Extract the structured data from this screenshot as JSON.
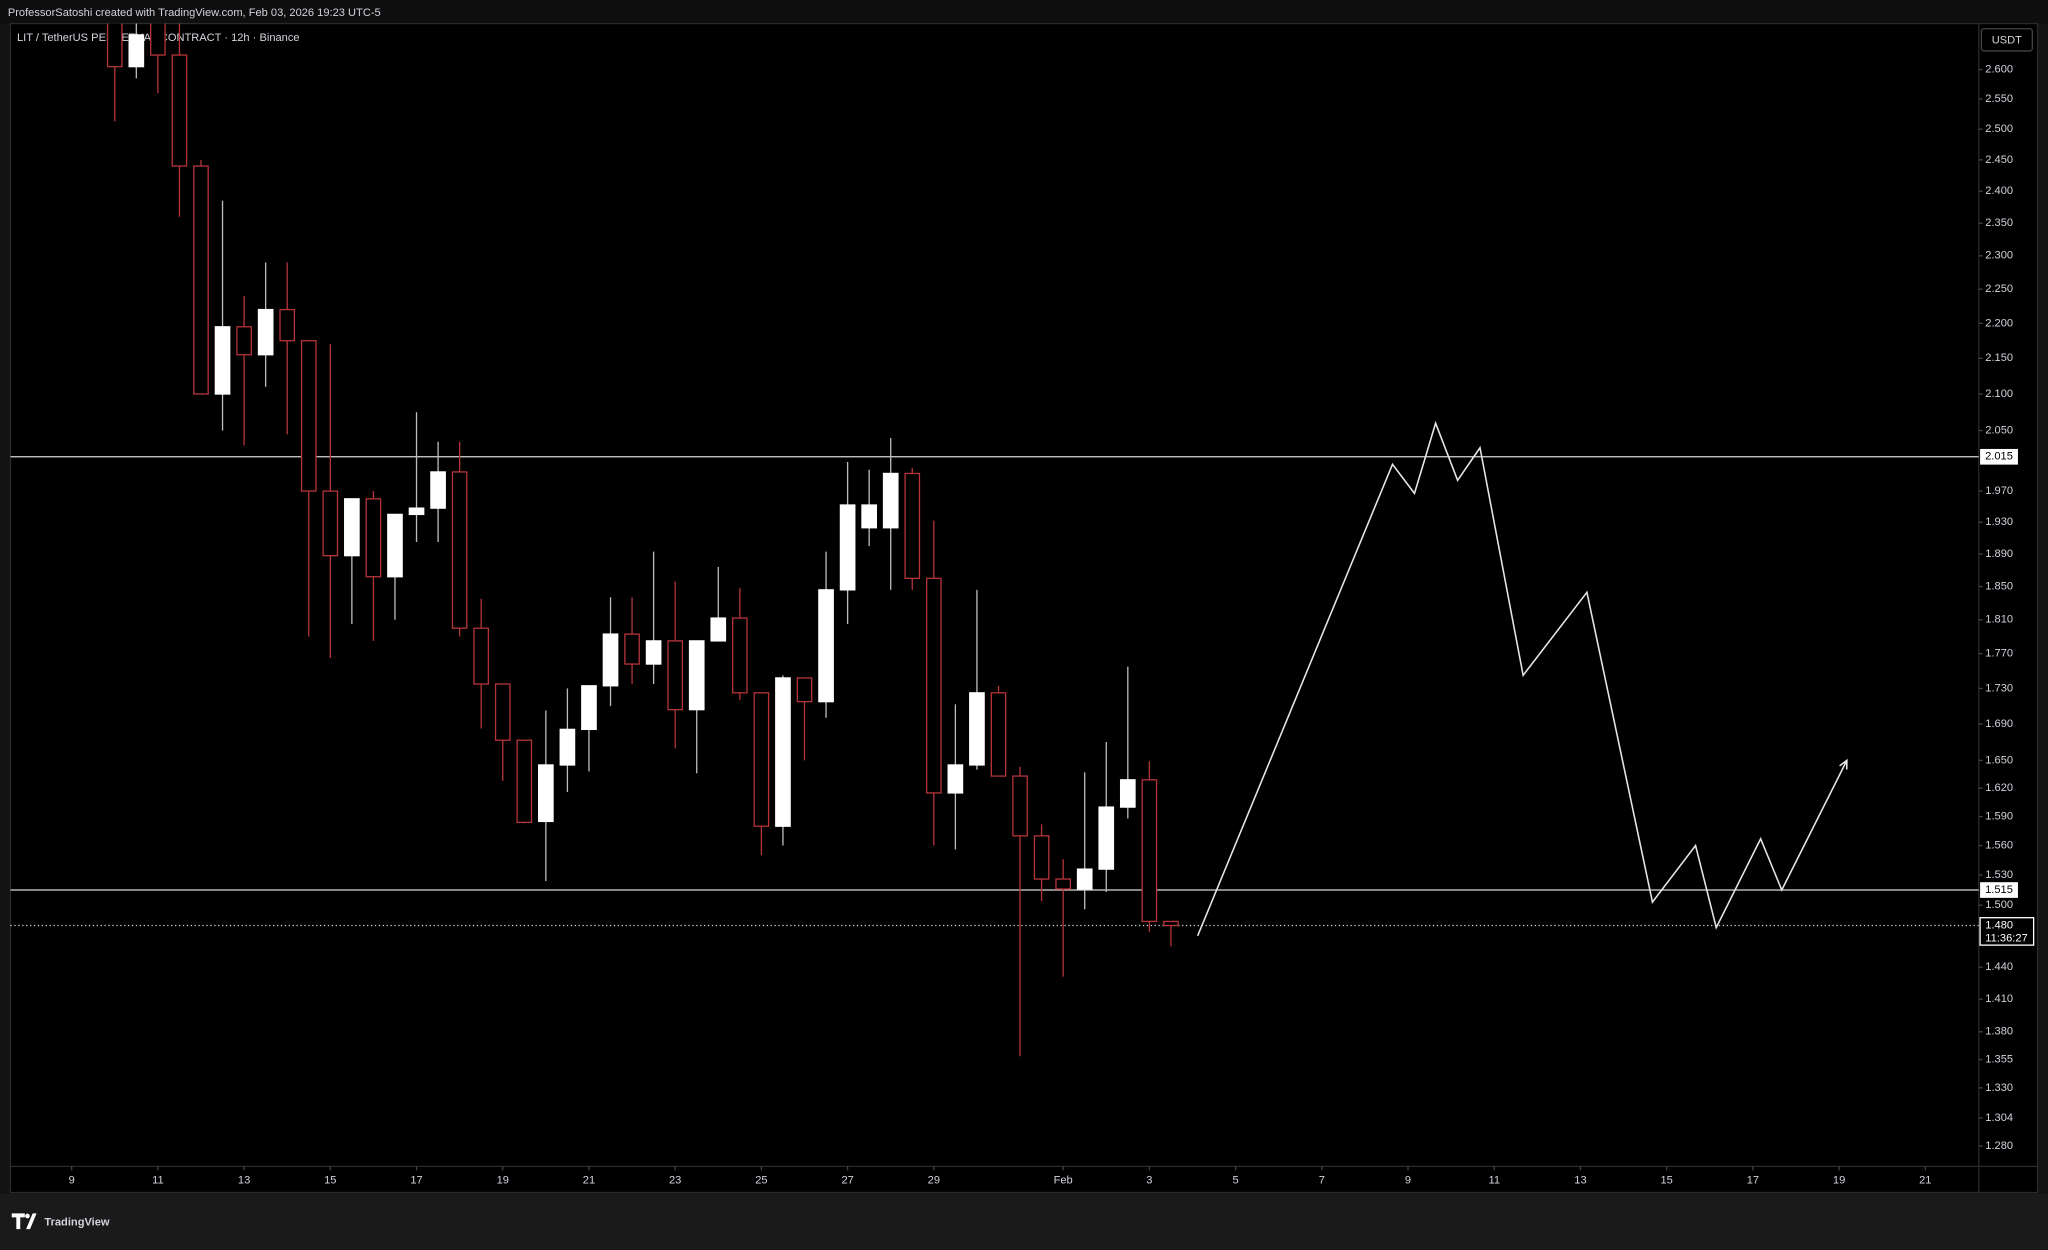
{
  "chart_data": {
    "type": "candlestick",
    "header": "ProfessorSatoshi created with TradingView.com, Feb 03, 2026 19:23 UTC-5",
    "title": "LIT / TetherUS PERPETUAL CONTRACT · 12h · Binance",
    "currency": "USDT",
    "brand": "TradingView",
    "log": true,
    "grid": false,
    "up_color": "#ffffff",
    "down_color": "#b5343a",
    "x": [
      10,
      10.5,
      11,
      11.5,
      12,
      12.5,
      13,
      13.5,
      14,
      14.5,
      15,
      15.5,
      16,
      16.5,
      17,
      17.5,
      18,
      18.5,
      19,
      19.5,
      20,
      20.5,
      21,
      21.5,
      22,
      22.5,
      23,
      23.5,
      24,
      24.5,
      25,
      25.5,
      26,
      26.5,
      27,
      27.5,
      28,
      28.5,
      29,
      29.5,
      30,
      30.5,
      31,
      31.5,
      32,
      32.5,
      33,
      33.5,
      34,
      34.5
    ],
    "open": [
      2.7,
      2.605,
      2.7,
      2.625,
      2.44,
      2.1,
      2.195,
      2.155,
      2.22,
      2.175,
      1.97,
      1.888,
      1.96,
      1.862,
      1.94,
      1.948,
      1.995,
      1.8,
      1.735,
      1.672,
      1.585,
      1.645,
      1.684,
      1.733,
      1.793,
      1.758,
      1.785,
      1.706,
      1.785,
      1.812,
      1.725,
      1.58,
      1.742,
      1.715,
      1.846,
      1.923,
      1.923,
      1.993,
      1.86,
      1.615,
      1.645,
      1.725,
      1.633,
      1.57,
      1.526,
      1.516,
      1.536,
      1.6,
      1.629,
      1.484
    ],
    "high": [
      2.72,
      2.72,
      2.73,
      2.68,
      2.45,
      2.385,
      2.24,
      2.29,
      2.29,
      2.175,
      2.17,
      1.96,
      1.97,
      1.94,
      2.075,
      2.035,
      2.035,
      1.835,
      1.735,
      1.672,
      1.705,
      1.73,
      1.733,
      1.837,
      1.837,
      1.893,
      1.856,
      1.785,
      1.874,
      1.848,
      1.725,
      1.745,
      1.742,
      1.893,
      2.008,
      1.998,
      2.04,
      2.0,
      1.932,
      1.712,
      1.846,
      1.733,
      1.643,
      1.582,
      1.546,
      1.637,
      1.67,
      1.755,
      1.649,
      1.484
    ],
    "low": [
      2.513,
      2.585,
      2.56,
      2.36,
      2.1,
      2.05,
      2.03,
      2.11,
      2.045,
      1.79,
      1.765,
      1.805,
      1.785,
      1.81,
      1.905,
      1.905,
      1.79,
      1.685,
      1.628,
      1.583,
      1.524,
      1.616,
      1.638,
      1.71,
      1.735,
      1.735,
      1.663,
      1.636,
      1.785,
      1.717,
      1.55,
      1.56,
      1.65,
      1.697,
      1.805,
      1.9,
      1.846,
      1.846,
      1.56,
      1.556,
      1.64,
      1.633,
      1.358,
      1.504,
      1.431,
      1.496,
      1.513,
      1.588,
      1.474,
      1.46
    ],
    "close": [
      2.605,
      2.66,
      2.625,
      2.44,
      2.1,
      2.195,
      2.155,
      2.22,
      2.175,
      1.97,
      1.888,
      1.96,
      1.862,
      1.94,
      1.948,
      1.995,
      1.8,
      1.735,
      1.672,
      1.584,
      1.645,
      1.684,
      1.733,
      1.793,
      1.758,
      1.785,
      1.706,
      1.785,
      1.812,
      1.725,
      1.58,
      1.742,
      1.715,
      1.846,
      1.952,
      1.952,
      1.993,
      1.86,
      1.615,
      1.645,
      1.725,
      1.633,
      1.57,
      1.526,
      1.516,
      1.536,
      1.6,
      1.629,
      1.484,
      1.48
    ],
    "xlim": [
      7.58,
      53.24
    ],
    "xticks": [
      9,
      11,
      13,
      15,
      17,
      19,
      21,
      23,
      25,
      27,
      29,
      {
        "value": 32,
        "label": "Feb"
      },
      {
        "value": 34,
        "label": "3"
      },
      {
        "value": 36,
        "label": "5"
      },
      {
        "value": 38,
        "label": "7"
      },
      {
        "value": 40,
        "label": "9"
      },
      {
        "value": 42,
        "label": "11"
      },
      {
        "value": 44,
        "label": "13"
      },
      {
        "value": 46,
        "label": "15"
      },
      {
        "value": 48,
        "label": "17"
      },
      {
        "value": 50,
        "label": "19"
      },
      {
        "value": 52,
        "label": "21"
      }
    ],
    "ylim": [
      1.263,
      2.68
    ],
    "yticks": [
      {
        "value": 2.6,
        "label": "2.600"
      },
      {
        "value": 2.55,
        "label": "2.550"
      },
      {
        "value": 2.5,
        "label": "2.500"
      },
      {
        "value": 2.45,
        "label": "2.450"
      },
      {
        "value": 2.4,
        "label": "2.400"
      },
      {
        "value": 2.35,
        "label": "2.350"
      },
      {
        "value": 2.3,
        "label": "2.300"
      },
      {
        "value": 2.25,
        "label": "2.250"
      },
      {
        "value": 2.2,
        "label": "2.200"
      },
      {
        "value": 2.15,
        "label": "2.150"
      },
      {
        "value": 2.1,
        "label": "2.100"
      },
      {
        "value": 2.05,
        "label": "2.050"
      },
      {
        "value": 1.97,
        "label": "1.970"
      },
      {
        "value": 1.93,
        "label": "1.930"
      },
      {
        "value": 1.89,
        "label": "1.890"
      },
      {
        "value": 1.85,
        "label": "1.850"
      },
      {
        "value": 1.81,
        "label": "1.810"
      },
      {
        "value": 1.77,
        "label": "1.770"
      },
      {
        "value": 1.73,
        "label": "1.730"
      },
      {
        "value": 1.69,
        "label": "1.690"
      },
      {
        "value": 1.65,
        "label": "1.650"
      },
      {
        "value": 1.62,
        "label": "1.620"
      },
      {
        "value": 1.59,
        "label": "1.590"
      },
      {
        "value": 1.56,
        "label": "1.560"
      },
      {
        "value": 1.53,
        "label": "1.530"
      },
      {
        "value": 1.5,
        "label": "1.500"
      },
      {
        "value": 1.44,
        "label": "1.440"
      },
      {
        "value": 1.41,
        "label": "1.410"
      },
      {
        "value": 1.38,
        "label": "1.380"
      },
      1.355,
      {
        "value": 1.33,
        "label": "1.330"
      },
      1.304,
      {
        "value": 1.28,
        "label": "1.280"
      }
    ],
    "hlines": [
      2.015,
      1.515
    ],
    "last_price": {
      "value": 1.48,
      "label": "1.480"
    },
    "countdown": "11:36:27",
    "projection": {
      "x": [
        35.12,
        39.64,
        40.15,
        40.64,
        41.15,
        41.67,
        42.67,
        44.15,
        45.67,
        46.67,
        47.15,
        48.18,
        48.67,
        50.18
      ],
      "values": [
        1.47,
        2.005,
        1.967,
        2.06,
        1.984,
        2.027,
        1.745,
        1.843,
        1.503,
        1.56,
        1.478,
        1.567,
        1.515,
        1.65
      ]
    }
  }
}
